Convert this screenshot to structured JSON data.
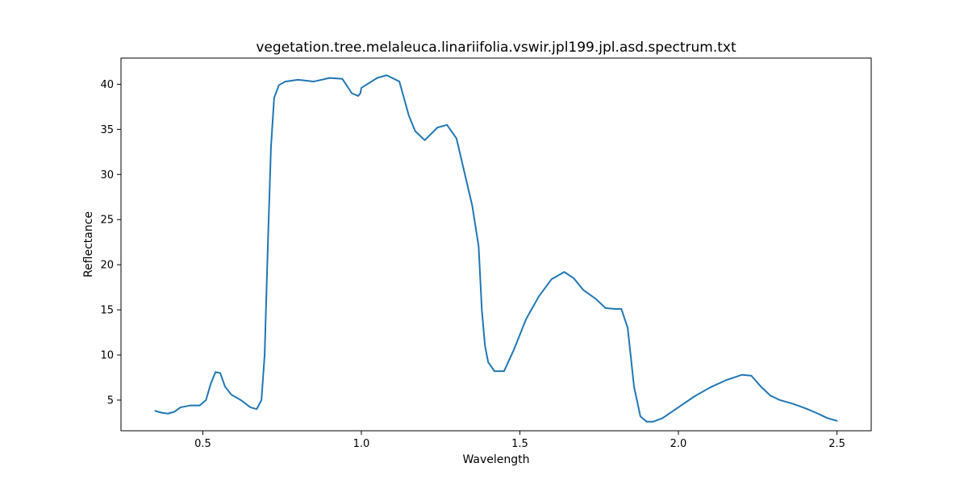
{
  "chart_data": {
    "type": "line",
    "title": "vegetation.tree.melaleuca.linariifolia.vswir.jpl199.jpl.asd.spectrum.txt",
    "xlabel": "Wavelength",
    "ylabel": "Reflectance",
    "xlim": [
      0.242,
      2.608
    ],
    "ylim": [
      1.6,
      42.9
    ],
    "xticks": [
      0.5,
      1.0,
      1.5,
      2.0,
      2.5
    ],
    "xtick_labels": [
      "0.5",
      "1.0",
      "1.5",
      "2.0",
      "2.5"
    ],
    "yticks": [
      5,
      10,
      15,
      20,
      25,
      30,
      35,
      40
    ],
    "ytick_labels": [
      "5",
      "10",
      "15",
      "20",
      "25",
      "30",
      "35",
      "40"
    ],
    "grid": false,
    "legend": "none",
    "line_color": "#1f77b4",
    "series": [
      {
        "x": [
          0.35,
          0.37,
          0.39,
          0.41,
          0.43,
          0.46,
          0.49,
          0.51,
          0.525,
          0.54,
          0.555,
          0.57,
          0.59,
          0.62,
          0.635,
          0.65,
          0.67,
          0.685,
          0.695,
          0.705,
          0.715,
          0.725,
          0.74,
          0.76,
          0.8,
          0.85,
          0.9,
          0.94,
          0.97,
          0.99,
          0.997,
          1.0,
          1.05,
          1.08,
          1.12,
          1.15,
          1.17,
          1.2,
          1.24,
          1.27,
          1.3,
          1.33,
          1.35,
          1.37,
          1.38,
          1.39,
          1.4,
          1.42,
          1.45,
          1.48,
          1.52,
          1.56,
          1.6,
          1.64,
          1.67,
          1.7,
          1.74,
          1.77,
          1.8,
          1.82,
          1.84,
          1.86,
          1.88,
          1.9,
          1.92,
          1.95,
          2.0,
          2.05,
          2.1,
          2.15,
          2.2,
          2.23,
          2.26,
          2.29,
          2.32,
          2.36,
          2.4,
          2.44,
          2.47,
          2.49,
          2.5
        ],
        "y": [
          3.8,
          3.6,
          3.5,
          3.7,
          4.2,
          4.4,
          4.4,
          5.0,
          6.8,
          8.1,
          8.0,
          6.5,
          5.6,
          5.0,
          4.6,
          4.2,
          4.0,
          5.0,
          10.0,
          22.0,
          33.0,
          38.5,
          39.9,
          40.3,
          40.5,
          40.3,
          40.7,
          40.6,
          39.0,
          38.7,
          39.0,
          39.6,
          40.7,
          41.0,
          40.3,
          36.5,
          34.8,
          33.8,
          35.2,
          35.5,
          34.0,
          29.5,
          26.5,
          22.0,
          15.0,
          11.0,
          9.2,
          8.2,
          8.2,
          10.5,
          14.0,
          16.5,
          18.4,
          19.2,
          18.5,
          17.2,
          16.2,
          15.2,
          15.1,
          15.1,
          13.0,
          6.5,
          3.2,
          2.6,
          2.6,
          3.0,
          4.2,
          5.4,
          6.4,
          7.2,
          7.8,
          7.7,
          6.5,
          5.5,
          5.0,
          4.6,
          4.1,
          3.5,
          3.0,
          2.8,
          2.7
        ]
      }
    ]
  }
}
